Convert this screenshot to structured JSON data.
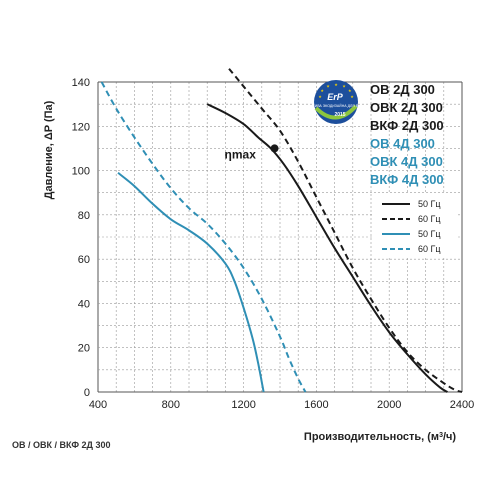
{
  "chart_data": {
    "type": "line",
    "title": "",
    "xlabel": "Производительность, (м³/ч)",
    "ylabel": "Давление, ΔP (Па)",
    "xlim": [
      400,
      2400
    ],
    "ylim": [
      0,
      140
    ],
    "xticks": [
      400,
      800,
      1200,
      1600,
      2000,
      2400
    ],
    "yticks": [
      0,
      20,
      40,
      60,
      80,
      100,
      120,
      140
    ],
    "grid": true,
    "legend_position": "right",
    "models": [
      {
        "text": "ОВ 2Д 300",
        "group": "black"
      },
      {
        "text": "ОВК 2Д 300",
        "group": "black"
      },
      {
        "text": "ВКФ 2Д 300",
        "group": "black"
      },
      {
        "text": "ОВ 4Д 300",
        "group": "blue"
      },
      {
        "text": "ОВК 4Д 300",
        "group": "blue"
      },
      {
        "text": "ВКФ 4Д 300",
        "group": "blue"
      }
    ],
    "annotation": {
      "text": "ηmax",
      "x": 1370,
      "y": 110
    },
    "badge": {
      "text": "ErP",
      "year": "2015",
      "caption": "ДИРЕКТИВА ЭКОДИЗАЙНА ДЛЯ ЕВРОПЫ"
    },
    "series": [
      {
        "name": "50 Гц",
        "color": "#1a1a1a",
        "dash": "solid",
        "x": [
          1000,
          1100,
          1200,
          1280,
          1350,
          1420,
          1500,
          1600,
          1700,
          1800,
          1900,
          2000,
          2100,
          2200,
          2280,
          2320
        ],
        "y": [
          130,
          126,
          121,
          115,
          110,
          103,
          93,
          79,
          65,
          52,
          39,
          27,
          17,
          8,
          2,
          0
        ]
      },
      {
        "name": "60 Гц",
        "color": "#1a1a1a",
        "dash": "dashed",
        "x": [
          1120,
          1200,
          1300,
          1400,
          1500,
          1600,
          1700,
          1800,
          1900,
          2000,
          2100,
          2200,
          2300,
          2360,
          2400
        ],
        "y": [
          146,
          138,
          128,
          118,
          104,
          88,
          72,
          56,
          42,
          29,
          18,
          10,
          4,
          1,
          0
        ]
      },
      {
        "name": "50 Гц",
        "color": "#2f8fb5",
        "dash": "solid",
        "x": [
          510,
          600,
          700,
          800,
          900,
          1000,
          1100,
          1150,
          1200,
          1250,
          1280,
          1310
        ],
        "y": [
          99,
          93,
          85,
          78,
          73,
          67,
          58,
          50,
          38,
          24,
          13,
          0
        ]
      },
      {
        "name": "60 Гц",
        "color": "#2f8fb5",
        "dash": "dashed",
        "x": [
          420,
          500,
          600,
          700,
          800,
          900,
          1000,
          1100,
          1200,
          1300,
          1400,
          1450,
          1500,
          1540
        ],
        "y": [
          140,
          128,
          115,
          103,
          92,
          83,
          76,
          67,
          56,
          42,
          25,
          15,
          6,
          0
        ]
      }
    ]
  },
  "footer": {
    "text": "ОВ / ОВК / ВКФ 2Д 300"
  }
}
